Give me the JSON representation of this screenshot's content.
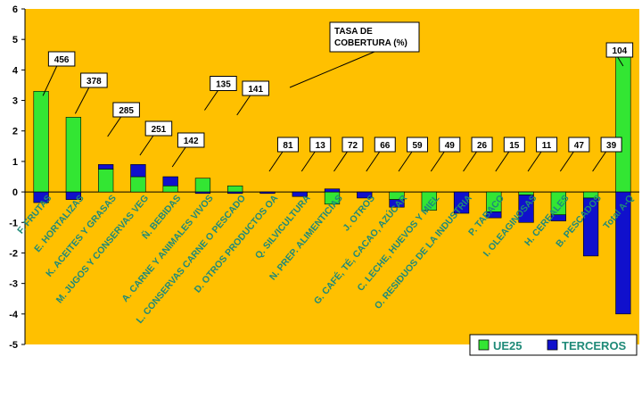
{
  "chart_data": {
    "type": "bar",
    "stacked": true,
    "annotation": "TASA DE COBERTURA (%)",
    "ylim": [
      -5,
      6
    ],
    "yticks": [
      6,
      5,
      4,
      3,
      2,
      1,
      0,
      -1,
      -2,
      -3,
      -4,
      -5
    ],
    "grid": false,
    "legend_position": "bottom-right",
    "colors": {
      "plot_bg": "#FFC000",
      "ue25": "#33E633",
      "terceros": "#1010CC"
    },
    "categories": [
      "F. FRUTAS",
      "E. HORTALIZAS",
      "K. ACEITES Y GRASAS",
      "M. JUGOS Y CONSERVAS VEG",
      "Ñ. BEBIDAS",
      "A. CARNE Y ANIMALES VIVOS",
      "L. CONSERVAS CARNE O PESCADO",
      "D. OTROS PRODUCTOS OA",
      "Q. SILVICULTURA",
      "N. PREP. ALIMENTICIAS",
      "J. OTROS",
      "G. CAFÉ, TÉ, CACAO, AZÚCAR",
      "C. LECHE, HUEVOS Y MIEL",
      "O. RESIDUOS DE LA INDUSTRIA",
      "P. TABACO",
      "I. OLEAGINOSAS",
      "H. CEREALES",
      "B. PESCADOS",
      "Total A-Q"
    ],
    "coverage_labels": [
      "456",
      "378",
      "285",
      "251",
      "142",
      "135",
      "141",
      "81",
      "13",
      "72",
      "66",
      "59",
      "49",
      "26",
      "15",
      "11",
      "47",
      "39",
      "104"
    ],
    "series": [
      {
        "name": "UE25",
        "values": [
          3.3,
          2.45,
          0.75,
          0.5,
          0.2,
          0.45,
          0.2,
          0.0,
          0.0,
          -0.4,
          0.0,
          -0.25,
          -0.6,
          0.0,
          -0.65,
          -0.1,
          -0.75,
          -0.2,
          4.5
        ]
      },
      {
        "name": "TERCEROS",
        "values": [
          -0.35,
          -0.25,
          0.15,
          0.4,
          0.3,
          -0.05,
          -0.05,
          -0.05,
          -0.15,
          0.1,
          -0.2,
          -0.25,
          0.0,
          -0.7,
          -0.2,
          -0.9,
          -0.2,
          -1.9,
          -4.0
        ]
      }
    ]
  }
}
